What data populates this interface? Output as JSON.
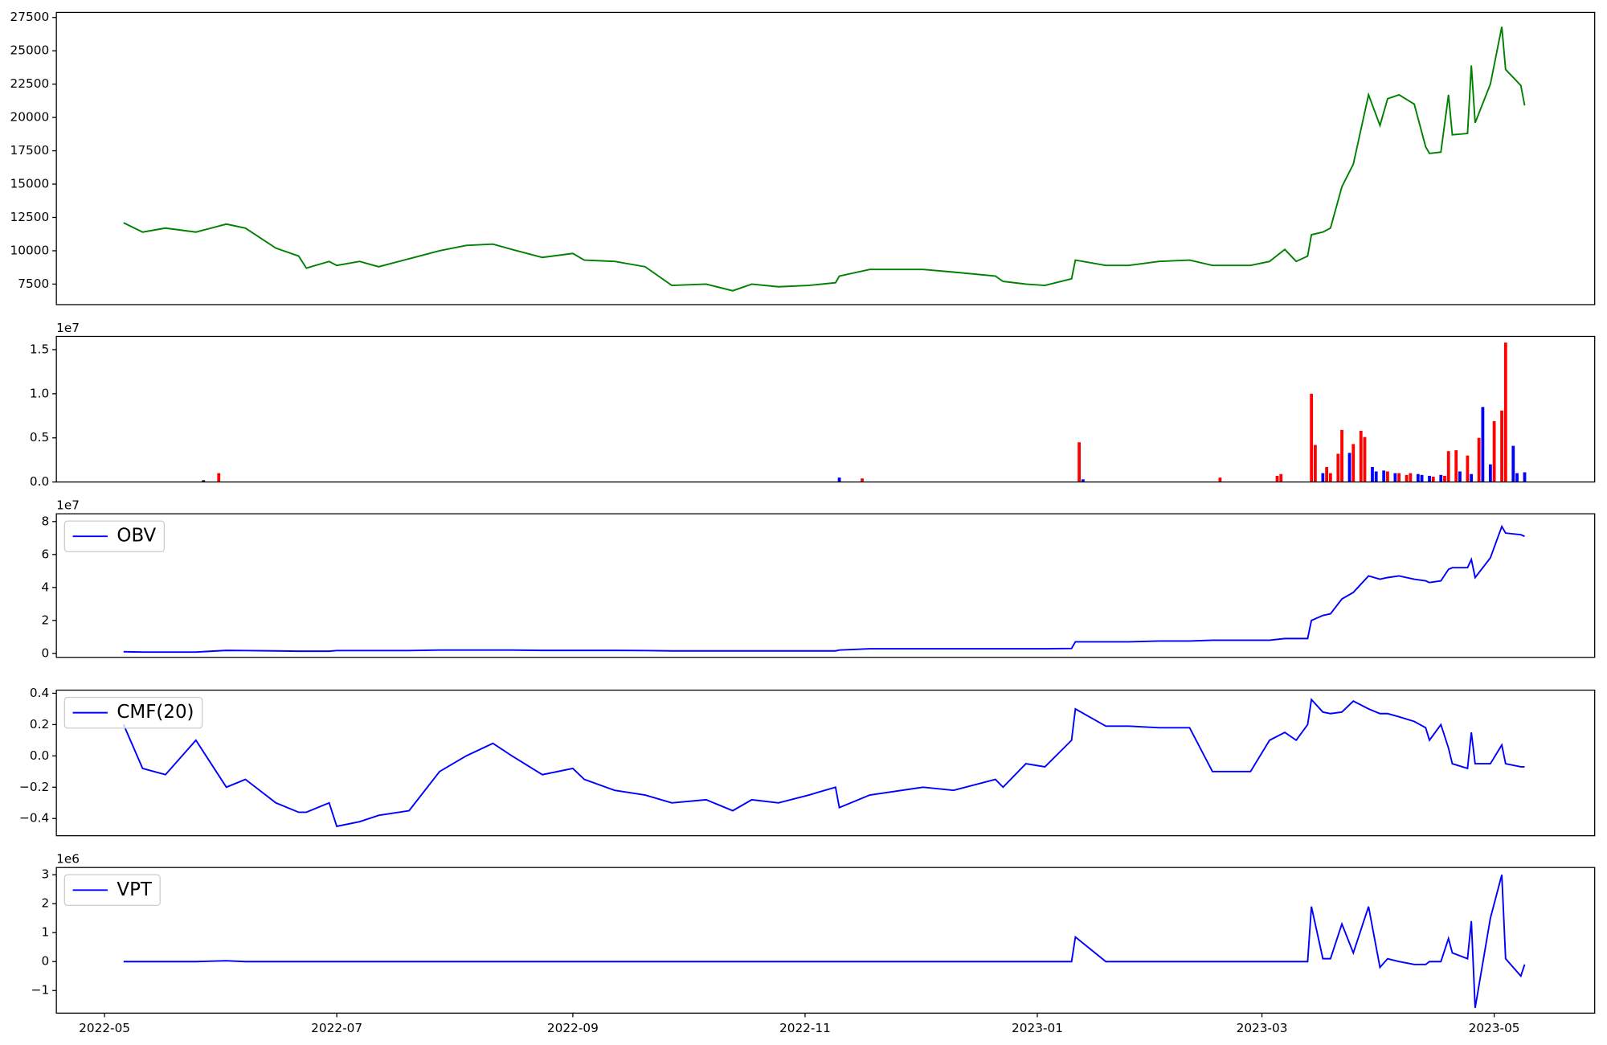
{
  "chart_data": [
    {
      "type": "line",
      "color": "green",
      "x": [
        19118,
        19123,
        19129,
        19137,
        19145,
        19150,
        19158,
        19164,
        19166,
        19172,
        19174,
        19180,
        19185,
        19193,
        19201,
        19208,
        19215,
        19220,
        19228,
        19236,
        19239,
        19247,
        19255,
        19262,
        19271,
        19278,
        19283,
        19290,
        19298,
        19305,
        19306,
        19314,
        19328,
        19336,
        19347,
        19349,
        19355,
        19360,
        19367,
        19368,
        19376,
        19382,
        19390,
        19398,
        19404,
        19414,
        19419,
        19423,
        19426,
        19429,
        19430,
        19433,
        19435,
        19438,
        19441,
        19445,
        19448,
        19450,
        19453,
        19457,
        19460,
        19461,
        19464,
        19466,
        19467,
        19471,
        19472,
        19473,
        19477,
        19480,
        19481,
        19485,
        19486
      ],
      "values": [
        12100,
        11400,
        11700,
        11400,
        12000,
        11700,
        10200,
        9600,
        8700,
        9200,
        8900,
        9200,
        8800,
        9400,
        10000,
        10400,
        10500,
        10100,
        9500,
        9800,
        9300,
        9200,
        8800,
        7400,
        7500,
        7000,
        7500,
        7300,
        7400,
        7600,
        8100,
        8600,
        8600,
        8400,
        8100,
        7700,
        7500,
        7400,
        7900,
        9300,
        8900,
        8900,
        9200,
        9300,
        8900,
        8900,
        9200,
        10100,
        9200,
        9600,
        11200,
        11400,
        11700,
        14800,
        16500,
        21700,
        19400,
        21400,
        21700,
        21000,
        17800,
        17300,
        17400,
        21700,
        18700,
        18800,
        23900,
        19600,
        22500,
        26800,
        23600,
        22400,
        20900
      ],
      "xlim": [
        19100.35,
        19504.4
      ],
      "ylim": [
        5960,
        27880
      ],
      "yticks": [
        7500,
        10000,
        12500,
        15000,
        17500,
        20000,
        22500,
        25000,
        27500
      ]
    },
    {
      "type": "bar",
      "offset_label": "1e7",
      "x": [
        19139,
        19143,
        19306,
        19312,
        19369,
        19370,
        19406,
        19421,
        19422,
        19430,
        19431,
        19433,
        19434,
        19435,
        19437,
        19438,
        19440,
        19441,
        19443,
        19444,
        19446,
        19447,
        19449,
        19450,
        19452,
        19453,
        19455,
        19456,
        19458,
        19459,
        19461,
        19462,
        19464,
        19465,
        19466,
        19468,
        19469,
        19471,
        19472,
        19474,
        19475,
        19477,
        19478,
        19480,
        19481,
        19483,
        19484,
        19486
      ],
      "values": [
        0.02,
        0.1,
        0.05,
        0.04,
        0.45,
        0.03,
        0.05,
        0.07,
        0.09,
        1.0,
        0.42,
        0.1,
        0.17,
        0.1,
        0.32,
        0.59,
        0.33,
        0.43,
        0.58,
        0.51,
        0.17,
        0.12,
        0.13,
        0.12,
        0.1,
        0.1,
        0.08,
        0.1,
        0.09,
        0.08,
        0.07,
        0.06,
        0.08,
        0.07,
        0.35,
        0.36,
        0.12,
        0.3,
        0.09,
        0.5,
        0.85,
        0.2,
        0.69,
        0.81,
        1.58,
        0.41,
        0.1,
        0.11
      ],
      "colors": [
        "black",
        "red",
        "blue",
        "red",
        "red",
        "blue",
        "red",
        "red",
        "red",
        "red",
        "red",
        "blue",
        "red",
        "red",
        "red",
        "red",
        "blue",
        "red",
        "red",
        "red",
        "blue",
        "blue",
        "blue",
        "red",
        "blue",
        "red",
        "red",
        "red",
        "blue",
        "blue",
        "blue",
        "red",
        "blue",
        "red",
        "red",
        "red",
        "blue",
        "red",
        "blue",
        "red",
        "blue",
        "blue",
        "red",
        "red",
        "red",
        "blue",
        "blue",
        "blue"
      ],
      "xlim": [
        19100.35,
        19504.4
      ],
      "ylim": [
        0,
        1.65
      ],
      "yticks": [
        {
          "value": 0,
          "label": "0.0"
        },
        {
          "value": 0.5,
          "label": "0.5"
        },
        {
          "value": 1,
          "label": "1.0"
        },
        {
          "value": 1.5,
          "label": "1.5"
        }
      ]
    },
    {
      "type": "line",
      "offset_label": "1e7",
      "legend": "upper left",
      "x": [
        19118,
        19123,
        19129,
        19137,
        19145,
        19150,
        19158,
        19164,
        19166,
        19172,
        19174,
        19180,
        19185,
        19193,
        19201,
        19208,
        19215,
        19220,
        19228,
        19236,
        19239,
        19247,
        19255,
        19262,
        19271,
        19278,
        19283,
        19290,
        19298,
        19305,
        19306,
        19314,
        19328,
        19336,
        19347,
        19349,
        19355,
        19360,
        19367,
        19368,
        19376,
        19382,
        19390,
        19398,
        19404,
        19414,
        19419,
        19423,
        19426,
        19429,
        19430,
        19433,
        19435,
        19438,
        19441,
        19445,
        19448,
        19450,
        19453,
        19457,
        19460,
        19461,
        19464,
        19466,
        19467,
        19471,
        19472,
        19473,
        19477,
        19480,
        19481,
        19485,
        19486
      ],
      "series": [
        {
          "name": "OBV",
          "color": "blue",
          "values": [
            0.1,
            0.08,
            0.08,
            0.08,
            0.18,
            0.17,
            0.15,
            0.13,
            0.13,
            0.13,
            0.17,
            0.17,
            0.17,
            0.17,
            0.2,
            0.2,
            0.2,
            0.2,
            0.18,
            0.18,
            0.18,
            0.18,
            0.17,
            0.15,
            0.15,
            0.15,
            0.15,
            0.15,
            0.15,
            0.15,
            0.2,
            0.28,
            0.28,
            0.28,
            0.28,
            0.28,
            0.28,
            0.28,
            0.3,
            0.7,
            0.7,
            0.7,
            0.75,
            0.75,
            0.8,
            0.8,
            0.8,
            0.9,
            0.9,
            0.9,
            2.0,
            2.3,
            2.4,
            3.3,
            3.7,
            4.7,
            4.5,
            4.6,
            4.7,
            4.5,
            4.4,
            4.3,
            4.4,
            5.1,
            5.2,
            5.2,
            5.7,
            4.6,
            5.8,
            7.7,
            7.3,
            7.2,
            7.1
          ]
        }
      ],
      "xlim": [
        19100.35,
        19504.4
      ],
      "ylim": [
        -0.24,
        8.47
      ],
      "yticks": [
        0,
        2,
        4,
        6,
        8
      ]
    },
    {
      "type": "line",
      "legend": "upper left",
      "x": [
        19118,
        19123,
        19129,
        19137,
        19145,
        19150,
        19158,
        19164,
        19166,
        19172,
        19174,
        19180,
        19185,
        19193,
        19201,
        19208,
        19215,
        19220,
        19228,
        19236,
        19239,
        19247,
        19255,
        19262,
        19271,
        19278,
        19283,
        19290,
        19298,
        19305,
        19306,
        19314,
        19328,
        19336,
        19347,
        19349,
        19355,
        19360,
        19367,
        19368,
        19376,
        19382,
        19390,
        19398,
        19404,
        19414,
        19419,
        19423,
        19426,
        19429,
        19430,
        19433,
        19435,
        19438,
        19441,
        19445,
        19448,
        19450,
        19453,
        19457,
        19460,
        19461,
        19464,
        19466,
        19467,
        19471,
        19472,
        19473,
        19477,
        19480,
        19481,
        19485,
        19486
      ],
      "series": [
        {
          "name": "CMF(20)",
          "color": "blue",
          "values": [
            0.2,
            -0.08,
            -0.12,
            0.1,
            -0.2,
            -0.15,
            -0.3,
            -0.36,
            -0.36,
            -0.3,
            -0.45,
            -0.42,
            -0.38,
            -0.35,
            -0.1,
            0.0,
            0.08,
            0.0,
            -0.12,
            -0.08,
            -0.15,
            -0.22,
            -0.25,
            -0.3,
            -0.28,
            -0.35,
            -0.28,
            -0.3,
            -0.25,
            -0.2,
            -0.33,
            -0.25,
            -0.2,
            -0.22,
            -0.15,
            -0.2,
            -0.05,
            -0.07,
            0.1,
            0.3,
            0.19,
            0.19,
            0.18,
            0.18,
            -0.1,
            -0.1,
            0.1,
            0.15,
            0.1,
            0.2,
            0.36,
            0.28,
            0.27,
            0.28,
            0.35,
            0.3,
            0.27,
            0.27,
            0.25,
            0.22,
            0.18,
            0.1,
            0.2,
            0.05,
            -0.05,
            -0.08,
            0.15,
            -0.05,
            -0.05,
            0.07,
            -0.05,
            -0.07,
            -0.07
          ]
        }
      ],
      "xlim": [
        19100.35,
        19504.4
      ],
      "ylim": [
        -0.51,
        0.42
      ],
      "yticks": [
        {
          "value": -0.4,
          "label": "−0.4"
        },
        {
          "value": -0.2,
          "label": "−0.2"
        },
        {
          "value": 0,
          "label": "0.0"
        },
        {
          "value": 0.2,
          "label": "0.2"
        },
        {
          "value": 0.4,
          "label": "0.4"
        }
      ]
    },
    {
      "type": "line",
      "offset_label": "1e6",
      "legend": "upper left",
      "x": [
        19118,
        19123,
        19129,
        19137,
        19145,
        19150,
        19158,
        19164,
        19166,
        19172,
        19174,
        19180,
        19185,
        19193,
        19201,
        19208,
        19215,
        19220,
        19228,
        19236,
        19239,
        19247,
        19255,
        19262,
        19271,
        19278,
        19283,
        19290,
        19298,
        19305,
        19306,
        19314,
        19328,
        19336,
        19347,
        19349,
        19355,
        19360,
        19367,
        19368,
        19376,
        19382,
        19390,
        19398,
        19404,
        19414,
        19419,
        19423,
        19426,
        19429,
        19430,
        19433,
        19435,
        19438,
        19441,
        19445,
        19448,
        19450,
        19453,
        19457,
        19460,
        19461,
        19464,
        19466,
        19467,
        19471,
        19472,
        19473,
        19477,
        19480,
        19481,
        19485,
        19486
      ],
      "series": [
        {
          "name": "VPT",
          "color": "blue",
          "values": [
            0,
            0,
            0,
            0,
            0.03,
            0,
            0,
            0,
            0,
            0,
            0,
            0,
            0,
            0,
            0,
            0,
            0,
            0,
            0,
            0,
            0,
            0,
            0,
            0,
            0,
            0,
            0,
            0,
            0,
            0,
            0,
            0,
            0,
            0,
            0,
            0,
            0,
            0,
            0,
            0.85,
            0,
            0,
            0,
            0,
            0,
            0,
            0,
            0,
            0,
            0,
            1.9,
            0.1,
            0.1,
            1.3,
            0.3,
            1.9,
            -0.2,
            0.1,
            0,
            -0.1,
            -0.1,
            0,
            0,
            0.8,
            0.3,
            0.1,
            1.4,
            -1.6,
            1.5,
            3.0,
            0.1,
            -0.5,
            -0.1
          ]
        }
      ],
      "xlim": [
        19100.35,
        19504.4
      ],
      "ylim": [
        -1.78,
        3.25
      ],
      "yticks": [
        {
          "value": -1,
          "label": "−1"
        },
        0,
        1,
        2,
        3
      ],
      "xticks": [
        {
          "value": 19113,
          "label": "2022-05"
        },
        {
          "value": 19174,
          "label": "2022-07"
        },
        {
          "value": 19236,
          "label": "2022-09"
        },
        {
          "value": 19297,
          "label": "2022-11"
        },
        {
          "value": 19358,
          "label": "2023-01"
        },
        {
          "value": 19417,
          "label": "2023-03"
        },
        {
          "value": 19478,
          "label": "2023-05"
        }
      ]
    }
  ]
}
